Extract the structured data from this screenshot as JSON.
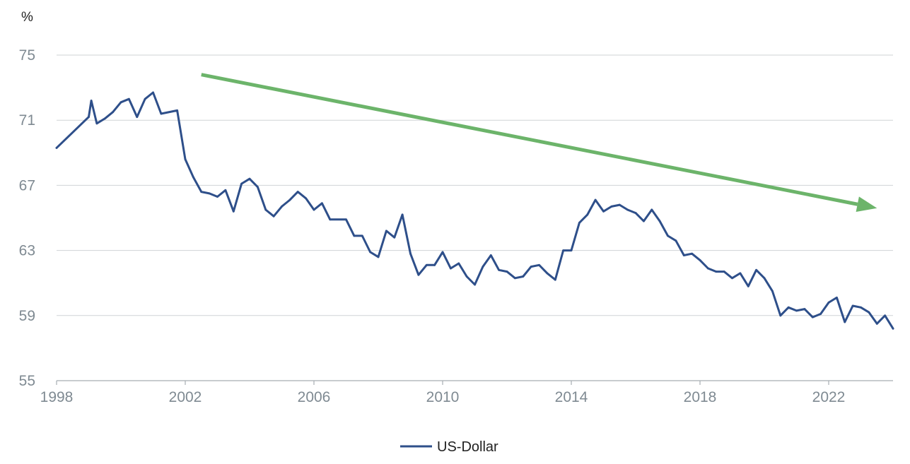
{
  "chart_data": {
    "type": "line",
    "y_unit_label": "%",
    "ylim": [
      55,
      75
    ],
    "yticks": [
      55,
      59,
      63,
      67,
      71,
      75
    ],
    "xlim": [
      1998,
      2024
    ],
    "xticks": [
      1998,
      2002,
      2006,
      2010,
      2014,
      2018,
      2022
    ],
    "grid": "horizontal",
    "legend_position": "bottom-center",
    "series": [
      {
        "name": "US-Dollar",
        "color": "#2e4f8a",
        "points": [
          [
            1998.0,
            69.3
          ],
          [
            1999.0,
            71.2
          ],
          [
            1999.08,
            72.2
          ],
          [
            1999.25,
            70.8
          ],
          [
            1999.5,
            71.1
          ],
          [
            1999.75,
            71.5
          ],
          [
            2000.0,
            72.1
          ],
          [
            2000.25,
            72.3
          ],
          [
            2000.5,
            71.2
          ],
          [
            2000.75,
            72.3
          ],
          [
            2001.0,
            72.7
          ],
          [
            2001.25,
            71.4
          ],
          [
            2001.75,
            71.6
          ],
          [
            2002.0,
            68.6
          ],
          [
            2002.25,
            67.5
          ],
          [
            2002.5,
            66.6
          ],
          [
            2002.75,
            66.5
          ],
          [
            2003.0,
            66.3
          ],
          [
            2003.25,
            66.7
          ],
          [
            2003.5,
            65.4
          ],
          [
            2003.75,
            67.1
          ],
          [
            2004.0,
            67.4
          ],
          [
            2004.25,
            66.9
          ],
          [
            2004.5,
            65.5
          ],
          [
            2004.75,
            65.1
          ],
          [
            2005.0,
            65.7
          ],
          [
            2005.25,
            66.1
          ],
          [
            2005.5,
            66.6
          ],
          [
            2005.75,
            66.2
          ],
          [
            2006.0,
            65.5
          ],
          [
            2006.25,
            65.9
          ],
          [
            2006.5,
            64.9
          ],
          [
            2007.0,
            64.9
          ],
          [
            2007.25,
            63.9
          ],
          [
            2007.5,
            63.9
          ],
          [
            2007.75,
            62.9
          ],
          [
            2008.0,
            62.6
          ],
          [
            2008.25,
            64.2
          ],
          [
            2008.5,
            63.8
          ],
          [
            2008.75,
            65.2
          ],
          [
            2009.0,
            62.8
          ],
          [
            2009.25,
            61.5
          ],
          [
            2009.5,
            62.1
          ],
          [
            2009.75,
            62.1
          ],
          [
            2010.0,
            62.9
          ],
          [
            2010.25,
            61.9
          ],
          [
            2010.5,
            62.2
          ],
          [
            2010.75,
            61.4
          ],
          [
            2011.0,
            60.9
          ],
          [
            2011.25,
            62.0
          ],
          [
            2011.5,
            62.7
          ],
          [
            2011.75,
            61.8
          ],
          [
            2012.0,
            61.7
          ],
          [
            2012.25,
            61.3
          ],
          [
            2012.5,
            61.4
          ],
          [
            2012.75,
            62.0
          ],
          [
            2013.0,
            62.1
          ],
          [
            2013.25,
            61.6
          ],
          [
            2013.5,
            61.2
          ],
          [
            2013.75,
            63.0
          ],
          [
            2014.0,
            63.0
          ],
          [
            2014.25,
            64.7
          ],
          [
            2014.5,
            65.2
          ],
          [
            2014.75,
            66.1
          ],
          [
            2015.0,
            65.4
          ],
          [
            2015.25,
            65.7
          ],
          [
            2015.5,
            65.8
          ],
          [
            2015.75,
            65.5
          ],
          [
            2016.0,
            65.3
          ],
          [
            2016.25,
            64.8
          ],
          [
            2016.5,
            65.5
          ],
          [
            2016.75,
            64.8
          ],
          [
            2017.0,
            63.9
          ],
          [
            2017.25,
            63.6
          ],
          [
            2017.5,
            62.7
          ],
          [
            2017.75,
            62.8
          ],
          [
            2018.0,
            62.4
          ],
          [
            2018.25,
            61.9
          ],
          [
            2018.5,
            61.7
          ],
          [
            2018.75,
            61.7
          ],
          [
            2019.0,
            61.3
          ],
          [
            2019.25,
            61.6
          ],
          [
            2019.5,
            60.8
          ],
          [
            2019.75,
            61.8
          ],
          [
            2020.0,
            61.3
          ],
          [
            2020.25,
            60.5
          ],
          [
            2020.5,
            59.0
          ],
          [
            2020.75,
            59.5
          ],
          [
            2021.0,
            59.3
          ],
          [
            2021.25,
            59.4
          ],
          [
            2021.5,
            58.9
          ],
          [
            2021.75,
            59.1
          ],
          [
            2022.0,
            59.8
          ],
          [
            2022.25,
            60.1
          ],
          [
            2022.5,
            58.6
          ],
          [
            2022.75,
            59.6
          ],
          [
            2023.0,
            59.5
          ],
          [
            2023.25,
            59.2
          ],
          [
            2023.5,
            58.5
          ],
          [
            2023.75,
            59.0
          ],
          [
            2024.0,
            58.2
          ]
        ]
      }
    ],
    "annotations": [
      {
        "type": "trend-arrow",
        "color": "#6cb46a",
        "from": [
          2002.5,
          73.8
        ],
        "to": [
          2023.5,
          65.6
        ]
      }
    ]
  }
}
